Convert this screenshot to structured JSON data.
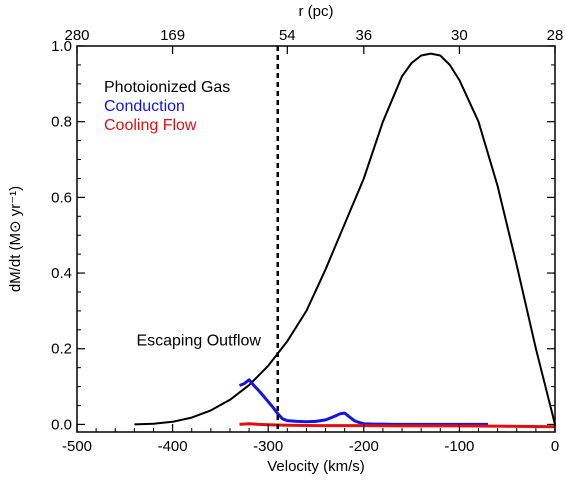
{
  "chart_data": {
    "type": "line",
    "xlabel": "Velocity (km/s)",
    "ylabel": "dM/dt (M⊙ yr⁻¹)",
    "xlim": [
      -500,
      0
    ],
    "ylim": [
      -0.02,
      1.0
    ],
    "xticks": [
      "-500",
      "-400",
      "-300",
      "-200",
      "-100",
      "0"
    ],
    "yticks": [
      "0.0",
      "0.2",
      "0.4",
      "0.6",
      "0.8",
      "1.0"
    ],
    "top_axis": {
      "label": "r (pc)",
      "ticks": [
        {
          "label": "280",
          "velocity": -500
        },
        {
          "label": "169",
          "velocity": -400
        },
        {
          "label": "54",
          "velocity": -280
        },
        {
          "label": "36",
          "velocity": -200
        },
        {
          "label": "30",
          "velocity": -100
        },
        {
          "label": "28",
          "velocity": 0
        }
      ]
    },
    "series": [
      {
        "name": "Photoionized Gas",
        "color": "#000000",
        "x": [
          -440,
          -420,
          -400,
          -380,
          -360,
          -340,
          -320,
          -300,
          -280,
          -260,
          -240,
          -220,
          -200,
          -180,
          -160,
          -150,
          -140,
          -130,
          -120,
          -110,
          -100,
          -80,
          -60,
          -40,
          -20,
          0
        ],
        "y": [
          0.0,
          0.002,
          0.007,
          0.018,
          0.037,
          0.065,
          0.104,
          0.155,
          0.22,
          0.3,
          0.41,
          0.53,
          0.65,
          0.8,
          0.92,
          0.955,
          0.975,
          0.98,
          0.975,
          0.95,
          0.91,
          0.8,
          0.63,
          0.42,
          0.2,
          0.0
        ]
      },
      {
        "name": "Conduction",
        "color": "#1414e6",
        "x": [
          -330,
          -325,
          -320,
          -315,
          -310,
          -305,
          -300,
          -295,
          -290,
          -285,
          -280,
          -270,
          -260,
          -250,
          -240,
          -230,
          -225,
          -220,
          -215,
          -210,
          -205,
          -200,
          -190,
          -180,
          -170,
          -160,
          -150,
          -140,
          -130,
          -120,
          -110,
          -100,
          -90,
          -80,
          -70
        ],
        "y": [
          0.103,
          0.108,
          0.118,
          0.103,
          0.09,
          0.075,
          0.06,
          0.045,
          0.028,
          0.015,
          0.01,
          0.008,
          0.007,
          0.008,
          0.012,
          0.022,
          0.028,
          0.03,
          0.02,
          0.01,
          0.005,
          0.002,
          0.001,
          0.001,
          0.0,
          0.0,
          0.0,
          0.0,
          0.0,
          0.0,
          0.0,
          0.0,
          0.0,
          0.0,
          0.0
        ]
      },
      {
        "name": "Cooling Flow",
        "color": "#e01010",
        "x": [
          -330,
          -320,
          -310,
          -300,
          -280,
          -250,
          -200,
          -150,
          -100,
          -50,
          0
        ],
        "y": [
          0.0,
          0.002,
          0.0,
          -0.001,
          -0.002,
          -0.003,
          -0.003,
          -0.004,
          -0.004,
          -0.005,
          -0.006
        ]
      }
    ],
    "reference_line": {
      "x": -290,
      "style": "dashed",
      "color": "#000000"
    },
    "annotations": [
      {
        "text": "Escaping Outflow",
        "x": -295,
        "y": 0.2
      }
    ],
    "legend": {
      "position": "top-left"
    }
  }
}
